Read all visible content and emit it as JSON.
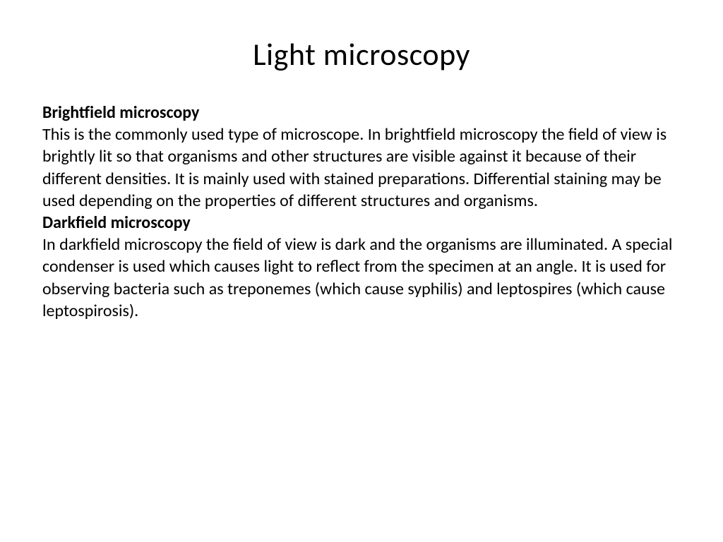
{
  "slide": {
    "title": "Light microscopy",
    "sections": [
      {
        "heading": "Brightfield microscopy",
        "body": "This is the commonly used type of microscope. In brightfield microscopy the field of view is brightly lit so that organisms and other structures are visible against it because of their different densities. It is mainly used with stained preparations. Differential staining may be used depending on the properties of different structures and organisms."
      },
      {
        "heading": "Darkfield microscopy",
        "body": "In darkfield microscopy the field of view is dark and the organisms are illuminated. A special condenser is used which causes light to reflect from the specimen at an angle. It is used for observing bacteria such as treponemes (which cause syphilis) and leptospires (which cause leptospirosis)."
      }
    ]
  },
  "styling": {
    "background_color": "#ffffff",
    "text_color": "#000000",
    "title_fontsize": 44,
    "title_fontweight": 400,
    "heading_fontsize": 24,
    "heading_fontweight": 700,
    "body_fontsize": 24,
    "body_fontweight": 400,
    "font_family": "Calibri"
  }
}
